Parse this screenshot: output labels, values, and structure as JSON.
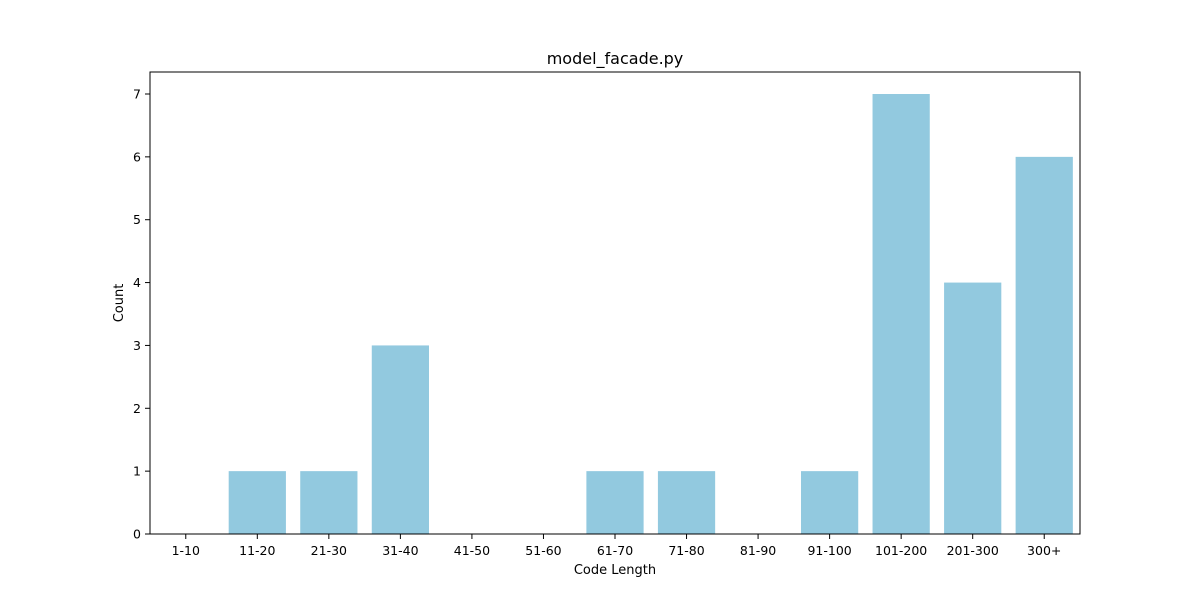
{
  "chart_data": {
    "type": "bar",
    "title": "model_facade.py",
    "xlabel": "Code Length",
    "ylabel": "Count",
    "categories": [
      "1-10",
      "11-20",
      "21-30",
      "31-40",
      "41-50",
      "51-60",
      "61-70",
      "71-80",
      "81-90",
      "91-100",
      "101-200",
      "201-300",
      "300+"
    ],
    "values": [
      0,
      1,
      1,
      3,
      0,
      0,
      1,
      1,
      0,
      1,
      7,
      4,
      6
    ],
    "ylim": [
      0,
      7.35
    ],
    "yticks": [
      0,
      1,
      2,
      3,
      4,
      5,
      6,
      7
    ],
    "bar_color": "#92c9df",
    "grid": false,
    "legend": "none"
  }
}
